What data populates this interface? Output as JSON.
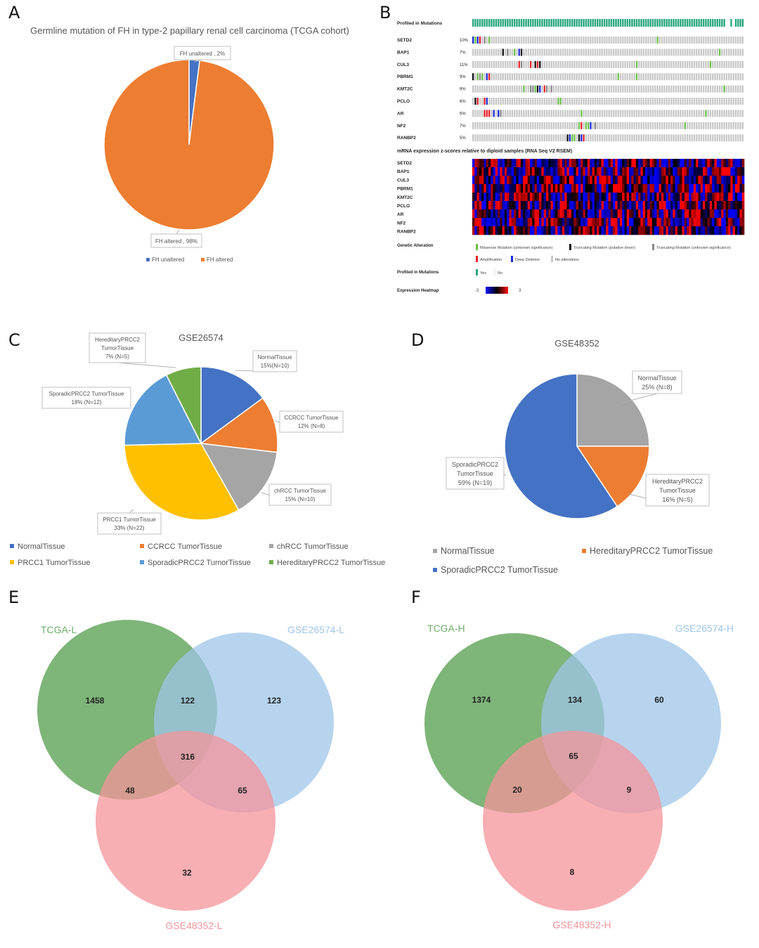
{
  "panel_labels": {
    "a": "A",
    "b": "B",
    "c": "C",
    "d": "D",
    "e": "E",
    "f": "F"
  },
  "chart_data": [
    {
      "id": "A",
      "type": "pie",
      "title": "Germline mutation of FH in type-2 papillary renal cell carcinoma (TCGA cohort)",
      "categories": [
        "FH  unaltered",
        "FH altered"
      ],
      "values": [
        2,
        98
      ],
      "colors": [
        "#4472c4",
        "#ed7d31"
      ],
      "labels": [
        "FH  unaltered , 2%",
        "FH altered , 98%"
      ],
      "legend": [
        "FH  unaltered",
        "FH altered"
      ],
      "legend_position": "bottom"
    },
    {
      "id": "B",
      "type": "heatmap",
      "profiled_label": "Profiled in Mutations",
      "genes": [
        "SETD2",
        "BAP1",
        "CUL3",
        "PBRM1",
        "KMT2C",
        "PCLO",
        "AR",
        "NF2",
        "RANBP2"
      ],
      "percents": [
        "10%",
        "7%",
        "11%",
        "9%",
        "9%",
        "6%",
        "5%",
        "7%",
        "5%"
      ],
      "mrna_title": "mRNA expression z-scores relative to diploid samples (RNA Seq V2 RSEM)",
      "legend_genetic_title": "Genetic Alteration",
      "legend_genetic": [
        {
          "label": "Missense Mutation (unknown significance)",
          "color": "#6cc04a"
        },
        {
          "label": "Truncating Mutation (putative driver)",
          "color": "#111111"
        },
        {
          "label": "Truncating Mutation (unknown significance)",
          "color": "#888888"
        },
        {
          "label": "Amplification",
          "color": "#e8202a"
        },
        {
          "label": "Deep Deletion",
          "color": "#1a2bd8"
        },
        {
          "label": "No alterations",
          "color": "#c8c8c8"
        }
      ],
      "legend_profiled_title": "Profiled in Mutations",
      "legend_profiled": [
        {
          "label": "Yes",
          "color": "#24a57b"
        },
        {
          "label": "No",
          "color": "#ffffff"
        }
      ],
      "legend_heatmap_title": "Expression Heatmap",
      "heatmap_range": [
        "-3",
        "3"
      ],
      "colors": {
        "low": "#1010ff",
        "mid": "#000000",
        "high": "#ff1010",
        "profiled": "#24a57b",
        "none": "#c8c8c8"
      }
    },
    {
      "id": "C",
      "type": "pie",
      "title": "GSE26574",
      "categories": [
        "NormalTissue",
        "CCRCC TumorTissue",
        "chRCC TumorTissue",
        "PRCC1 TumorTissue",
        "SporadicPRCC2 TumorTissue",
        "HereditaryPRCC2 TumorTissue"
      ],
      "values": [
        10,
        8,
        10,
        22,
        12,
        5
      ],
      "colors": [
        "#4472c4",
        "#ed7d31",
        "#a5a5a5",
        "#ffc000",
        "#5b9bd5",
        "#70ad47"
      ],
      "labels": [
        [
          "NormalTissue",
          "15%(N=10)"
        ],
        [
          "CCRCC TumorTissue",
          "12% (N=8)"
        ],
        [
          "chRCC TumorTissue",
          "15% (N=10)"
        ],
        [
          "PRCC1 TumorTissue",
          "33% (N=22)"
        ],
        [
          "SporadicPRCC2 TumorTissue",
          "18% (N=12)"
        ],
        [
          "HereditaryPRCC2",
          "TumorTissue",
          "7% (N=5)"
        ]
      ],
      "legend": [
        "NormalTissue",
        "CCRCC TumorTissue",
        "chRCC TumorTissue",
        "PRCC1 TumorTissue",
        "SporadicPRCC2 TumorTissue",
        "HereditaryPRCC2 TumorTissue"
      ],
      "legend_position": "bottom"
    },
    {
      "id": "D",
      "type": "pie",
      "title": "GSE48352",
      "categories": [
        "NormalTissue",
        "HereditaryPRCC2 TumorTissue",
        "SporadicPRCC2 TumorTissue"
      ],
      "values": [
        8,
        5,
        19
      ],
      "colors": [
        "#a5a5a5",
        "#ed7d31",
        "#4472c4"
      ],
      "labels": [
        [
          "NormalTissue",
          "25% (N=8)"
        ],
        [
          "HereditaryPRCC2",
          "TumorTissue",
          "16% (N=5)"
        ],
        [
          "SporadicPRCC2",
          "TumorTissue",
          "59% (N=19)"
        ]
      ],
      "legend": [
        "NormalTissue",
        "HereditaryPRCC2 TumorTissue",
        "SporadicPRCC2 TumorTissue"
      ],
      "legend_position": "bottom"
    },
    {
      "id": "E",
      "type": "venn",
      "sets": [
        "TCGA-L",
        "GSE26574-L",
        "GSE48352-L"
      ],
      "colors": [
        "#70ad6a",
        "#9fc5e8",
        "#f4949a"
      ],
      "regions": {
        "a": "1458",
        "ab": "122",
        "b": "123",
        "abc": "316",
        "ac": "48",
        "bc": "65",
        "c": "32"
      }
    },
    {
      "id": "F",
      "type": "venn",
      "sets": [
        "TCGA-H",
        "GSE26574-H",
        "GSE48352-H"
      ],
      "colors": [
        "#70ad6a",
        "#9fc5e8",
        "#f4949a"
      ],
      "regions": {
        "a": "1374",
        "ab": "134",
        "b": "60",
        "abc": "65",
        "ac": "20",
        "bc": "9",
        "c": "8"
      }
    }
  ]
}
